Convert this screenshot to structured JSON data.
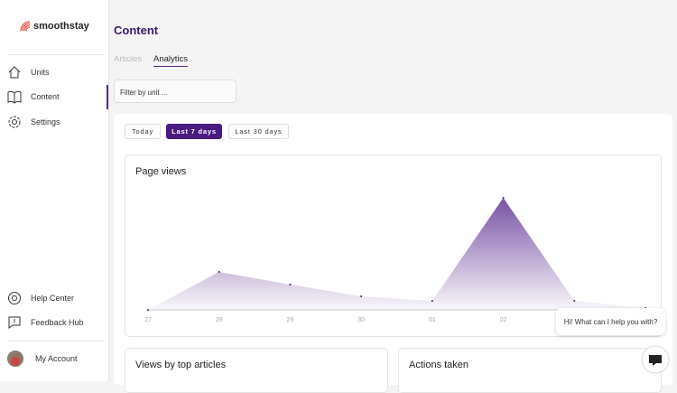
{
  "sidebar": {
    "brand": "smoothstay",
    "nav": [
      "Units",
      "Content",
      "Settings"
    ],
    "footer_nav": [
      "Help Center",
      "Feedback Hub"
    ],
    "account": "My Account"
  },
  "header": {
    "title": "Content",
    "tabs": [
      "Articles",
      "Analytics"
    ],
    "filter_placeholder": "Filter by unit ..."
  },
  "range_buttons": [
    "Today",
    "Last 7 days",
    "Last 30 days"
  ],
  "page_views": {
    "type": "area",
    "title": "Page views",
    "categories": [
      "27",
      "28",
      "29",
      "30",
      "01",
      "02",
      null,
      null
    ],
    "values": [
      0,
      42,
      28,
      15,
      10,
      124,
      10,
      2
    ],
    "ylim": [
      0,
      130
    ],
    "color": "#6a3d9a"
  },
  "cards": [
    "Views by top articles",
    "Actions taken"
  ],
  "chat": {
    "greeting": "Hi! What can I help you with?"
  }
}
